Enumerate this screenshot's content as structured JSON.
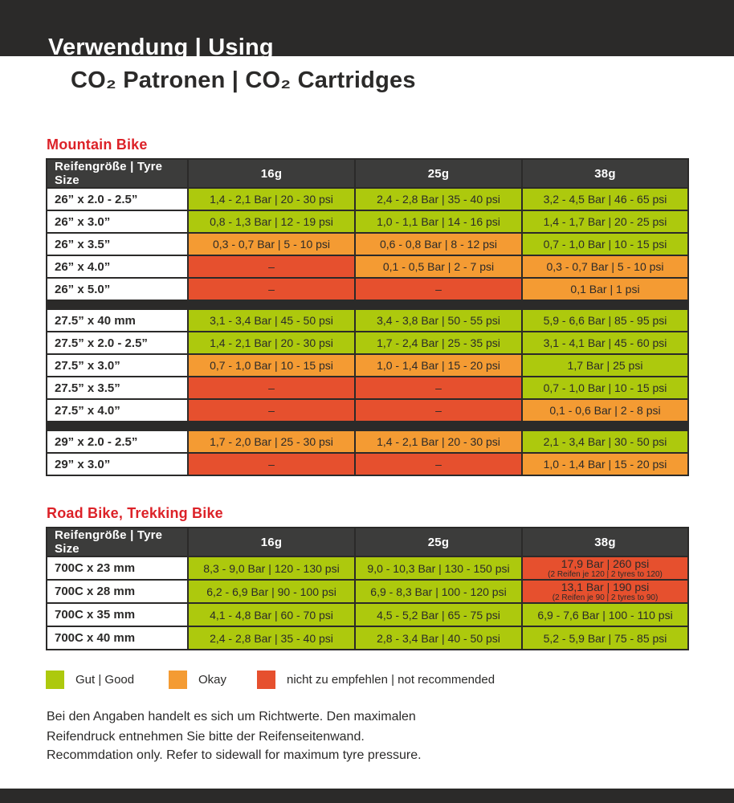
{
  "colors": {
    "dark": "#2b2a29",
    "header_bg": "#3c3c3b",
    "good": "#adc90d",
    "okay": "#f49b33",
    "bad": "#e6502e",
    "section_title": "#dc2228"
  },
  "header": {
    "band_title": "Verwendung | Using",
    "subtitle": "CO₂ Patronen | CO₂ Cartridges"
  },
  "tables": [
    {
      "title": "Mountain Bike",
      "columns": [
        "Reifengröße | Tyre Size",
        "16g",
        "25g",
        "38g"
      ],
      "groups": [
        {
          "rows": [
            {
              "size": "26” x 2.0 - 2.5”",
              "cells": [
                {
                  "text": "1,4 - 2,1 Bar | 20 - 30 psi",
                  "status": "good"
                },
                {
                  "text": "2,4 - 2,8 Bar | 35 - 40 psi",
                  "status": "good"
                },
                {
                  "text": "3,2 - 4,5 Bar | 46 - 65 psi",
                  "status": "good"
                }
              ]
            },
            {
              "size": "26” x 3.0”",
              "cells": [
                {
                  "text": "0,8 - 1,3 Bar | 12 - 19 psi",
                  "status": "good"
                },
                {
                  "text": "1,0 - 1,1 Bar | 14 - 16 psi",
                  "status": "good"
                },
                {
                  "text": "1,4 - 1,7 Bar | 20 - 25 psi",
                  "status": "good"
                }
              ]
            },
            {
              "size": "26” x 3.5”",
              "cells": [
                {
                  "text": "0,3 - 0,7 Bar | 5 - 10 psi",
                  "status": "okay"
                },
                {
                  "text": "0,6 - 0,8 Bar | 8 - 12 psi",
                  "status": "okay"
                },
                {
                  "text": "0,7 - 1,0 Bar | 10 - 15 psi",
                  "status": "good"
                }
              ]
            },
            {
              "size": "26” x 4.0”",
              "cells": [
                {
                  "text": "–",
                  "status": "bad"
                },
                {
                  "text": "0,1 - 0,5 Bar | 2 - 7 psi",
                  "status": "okay"
                },
                {
                  "text": "0,3 - 0,7 Bar | 5 - 10 psi",
                  "status": "okay"
                }
              ]
            },
            {
              "size": "26” x 5.0”",
              "cells": [
                {
                  "text": "–",
                  "status": "bad"
                },
                {
                  "text": "–",
                  "status": "bad"
                },
                {
                  "text": "0,1 Bar | 1 psi",
                  "status": "okay"
                }
              ]
            }
          ]
        },
        {
          "rows": [
            {
              "size": "27.5” x 40 mm",
              "cells": [
                {
                  "text": "3,1 - 3,4 Bar | 45 - 50 psi",
                  "status": "good"
                },
                {
                  "text": "3,4 - 3,8 Bar | 50 - 55 psi",
                  "status": "good"
                },
                {
                  "text": "5,9 - 6,6 Bar | 85 - 95 psi",
                  "status": "good"
                }
              ]
            },
            {
              "size": "27.5” x 2.0 - 2.5”",
              "cells": [
                {
                  "text": "1,4 - 2,1 Bar | 20 - 30 psi",
                  "status": "good"
                },
                {
                  "text": "1,7 - 2,4 Bar | 25 - 35 psi",
                  "status": "good"
                },
                {
                  "text": "3,1 - 4,1 Bar | 45 - 60 psi",
                  "status": "good"
                }
              ]
            },
            {
              "size": "27.5” x 3.0”",
              "cells": [
                {
                  "text": "0,7 - 1,0 Bar | 10 - 15 psi",
                  "status": "okay"
                },
                {
                  "text": "1,0 - 1,4 Bar | 15 - 20 psi",
                  "status": "okay"
                },
                {
                  "text": "1,7 Bar | 25 psi",
                  "status": "good"
                }
              ]
            },
            {
              "size": "27.5” x 3.5”",
              "cells": [
                {
                  "text": "–",
                  "status": "bad"
                },
                {
                  "text": "–",
                  "status": "bad"
                },
                {
                  "text": "0,7 - 1,0 Bar | 10 - 15 psi",
                  "status": "good"
                }
              ]
            },
            {
              "size": "27.5” x 4.0”",
              "cells": [
                {
                  "text": "–",
                  "status": "bad"
                },
                {
                  "text": "–",
                  "status": "bad"
                },
                {
                  "text": "0,1 - 0,6 Bar | 2 - 8 psi",
                  "status": "okay"
                }
              ]
            }
          ]
        },
        {
          "rows": [
            {
              "size": "29” x 2.0 - 2.5”",
              "cells": [
                {
                  "text": "1,7 - 2,0 Bar | 25 - 30 psi",
                  "status": "okay"
                },
                {
                  "text": "1,4 - 2,1 Bar | 20 - 30 psi",
                  "status": "okay"
                },
                {
                  "text": "2,1 - 3,4 Bar | 30 - 50 psi",
                  "status": "good"
                }
              ]
            },
            {
              "size": "29” x 3.0”",
              "cells": [
                {
                  "text": "–",
                  "status": "bad"
                },
                {
                  "text": "–",
                  "status": "bad"
                },
                {
                  "text": "1,0 - 1,4 Bar | 15 - 20 psi",
                  "status": "okay"
                }
              ]
            }
          ]
        }
      ]
    },
    {
      "title": "Road Bike, Trekking Bike",
      "columns": [
        "Reifengröße | Tyre Size",
        "16g",
        "25g",
        "38g"
      ],
      "groups": [
        {
          "rows": [
            {
              "size": "700C x 23 mm",
              "cells": [
                {
                  "text": "8,3 - 9,0 Bar | 120 - 130 psi",
                  "status": "good"
                },
                {
                  "text": "9,0 - 10,3 Bar | 130 - 150 psi",
                  "status": "good"
                },
                {
                  "text": "17,9 Bar | 260 psi",
                  "sub": "(2 Reifen je 120 | 2 tyres to 120)",
                  "status": "bad"
                }
              ]
            },
            {
              "size": "700C x 28 mm",
              "cells": [
                {
                  "text": "6,2 - 6,9 Bar | 90 - 100 psi",
                  "status": "good"
                },
                {
                  "text": "6,9 - 8,3 Bar | 100 - 120 psi",
                  "status": "good"
                },
                {
                  "text": "13,1 Bar | 190 psi",
                  "sub": "(2 Reifen je 90 | 2 tyres to 90)",
                  "status": "bad"
                }
              ]
            },
            {
              "size": "700C x 35 mm",
              "cells": [
                {
                  "text": "4,1 - 4,8 Bar | 60 - 70 psi",
                  "status": "good"
                },
                {
                  "text": "4,5 - 5,2 Bar | 65 - 75 psi",
                  "status": "good"
                },
                {
                  "text": "6,9 - 7,6 Bar | 100 - 110 psi",
                  "status": "good"
                }
              ]
            },
            {
              "size": "700C x 40 mm",
              "cells": [
                {
                  "text": "2,4 - 2,8 Bar | 35 - 40 psi",
                  "status": "good"
                },
                {
                  "text": "2,8 - 3,4 Bar | 40 - 50 psi",
                  "status": "good"
                },
                {
                  "text": "5,2 - 5,9 Bar | 75 - 85 psi",
                  "status": "good"
                }
              ]
            }
          ]
        }
      ]
    }
  ],
  "legend": [
    {
      "label": "Gut | Good",
      "status": "good"
    },
    {
      "label": "Okay",
      "status": "okay"
    },
    {
      "label": "nicht zu empfehlen | not recommended",
      "status": "bad"
    }
  ],
  "footer": {
    "de_line1": "Bei den Angaben handelt es sich um Richtwerte. Den maximalen",
    "de_line2": "Reifendruck entnehmen Sie bitte der Reifenseitenwand.",
    "en": "Recommdation only. Refer to sidewall for maximum tyre pressure."
  }
}
